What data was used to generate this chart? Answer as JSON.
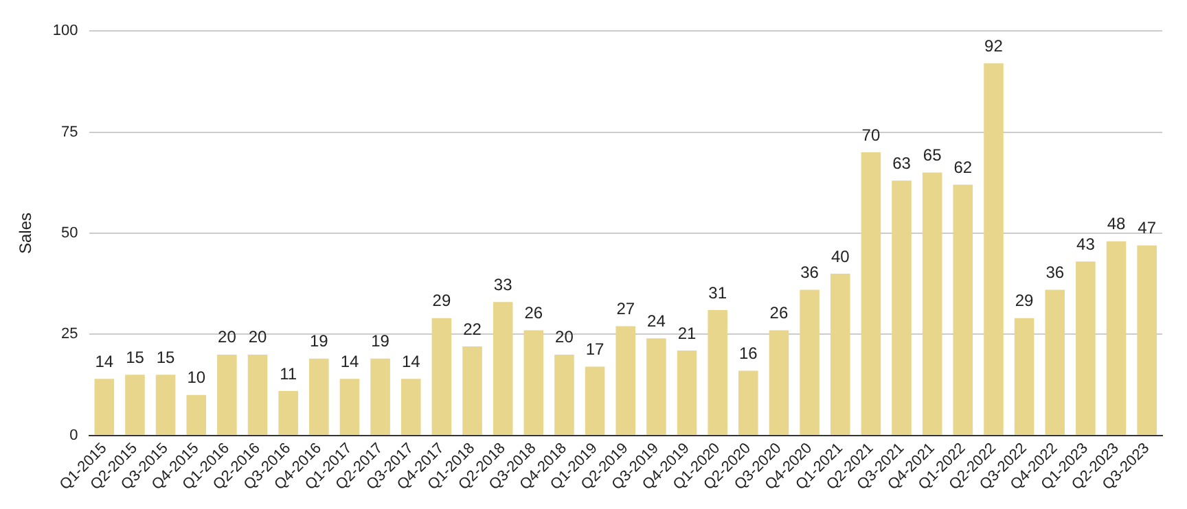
{
  "chart_data": {
    "type": "bar",
    "ylabel": "Sales",
    "categories": [
      "Q1-2015",
      "Q2-2015",
      "Q3-2015",
      "Q4-2015",
      "Q1-2016",
      "Q2-2016",
      "Q3-2016",
      "Q4-2016",
      "Q1-2017",
      "Q2-2017",
      "Q3-2017",
      "Q4-2017",
      "Q1-2018",
      "Q2-2018",
      "Q3-2018",
      "Q4-2018",
      "Q1-2019",
      "Q2-2019",
      "Q3-2019",
      "Q4-2019",
      "Q1-2020",
      "Q2-2020",
      "Q3-2020",
      "Q4-2020",
      "Q1-2021",
      "Q2-2021",
      "Q3-2021",
      "Q4-2021",
      "Q1-2022",
      "Q2-2022",
      "Q3-2022",
      "Q4-2022",
      "Q1-2023",
      "Q2-2023",
      "Q3-2023"
    ],
    "values": [
      14,
      15,
      15,
      10,
      20,
      20,
      11,
      19,
      14,
      19,
      14,
      29,
      22,
      33,
      26,
      20,
      17,
      27,
      24,
      21,
      31,
      16,
      26,
      36,
      40,
      70,
      63,
      65,
      62,
      92,
      29,
      36,
      43,
      48,
      47
    ],
    "color": "#e8d68c",
    "ylim": [
      0,
      100
    ],
    "yticks": [
      0,
      25,
      50,
      75,
      100
    ],
    "grid": "y",
    "data_labels": true,
    "legend": false
  }
}
